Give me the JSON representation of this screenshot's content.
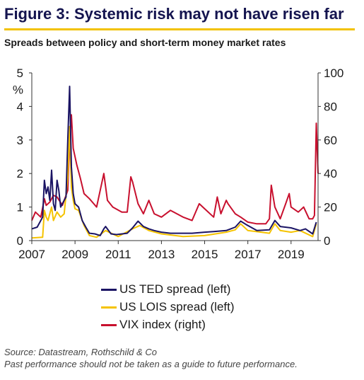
{
  "header": {
    "title": "Figure 3: Systemic risk may not have risen far",
    "subtitle": "Spreads between policy and short-term money market rates"
  },
  "footer": {
    "source": "Source: Datastream, Rothschild & Co",
    "disclaimer": "Past performance should not be taken as a guide to future performance."
  },
  "chart_data": {
    "type": "line",
    "title": "Figure 3: Systemic risk may not have risen far",
    "subtitle": "Spreads between policy and short-term money market rates",
    "x_range": [
      "2007-01",
      "2020-04"
    ],
    "x_ticks": [
      "2007",
      "2009",
      "2011",
      "2013",
      "2015",
      "2017",
      "2019"
    ],
    "y_left": {
      "unit": "%",
      "range": [
        0,
        5
      ],
      "ticks": [
        "0",
        "1",
        "2",
        "3",
        "4",
        "5"
      ]
    },
    "y_right": {
      "range": [
        0,
        100
      ],
      "ticks": [
        "0",
        "20",
        "40",
        "60",
        "80",
        "100"
      ]
    },
    "grid": false,
    "legend_position": "bottom",
    "series": [
      {
        "name": "US TED spread (left)",
        "axis": "left",
        "color": "#1b1464",
        "x": [
          "2007-01",
          "2007-04",
          "2007-07",
          "2007-08",
          "2007-09",
          "2007-10",
          "2007-11",
          "2007-12",
          "2008-01",
          "2008-02",
          "2008-03",
          "2008-04",
          "2008-05",
          "2008-06",
          "2008-07",
          "2008-08",
          "2008-09",
          "2008-10",
          "2008-11",
          "2008-12",
          "2009-01",
          "2009-03",
          "2009-05",
          "2009-07",
          "2009-09",
          "2009-12",
          "2010-03",
          "2010-05",
          "2010-06",
          "2010-09",
          "2010-12",
          "2011-06",
          "2011-09",
          "2011-12",
          "2012-03",
          "2012-06",
          "2012-09",
          "2013-01",
          "2013-06",
          "2014-01",
          "2014-06",
          "2015-01",
          "2015-06",
          "2016-01",
          "2016-06",
          "2016-09",
          "2016-12",
          "2017-06",
          "2018-01",
          "2018-04",
          "2018-07",
          "2019-01",
          "2019-06",
          "2019-09",
          "2020-01",
          "2020-03"
        ],
        "values": [
          0.35,
          0.4,
          0.7,
          1.8,
          1.4,
          1.6,
          1.2,
          2.1,
          1.1,
          0.9,
          1.8,
          1.5,
          1.0,
          1.1,
          1.2,
          1.3,
          3.0,
          4.6,
          2.2,
          1.4,
          1.1,
          1.0,
          0.6,
          0.4,
          0.22,
          0.2,
          0.15,
          0.35,
          0.42,
          0.2,
          0.18,
          0.22,
          0.38,
          0.58,
          0.42,
          0.35,
          0.3,
          0.25,
          0.22,
          0.22,
          0.22,
          0.25,
          0.27,
          0.3,
          0.4,
          0.58,
          0.48,
          0.3,
          0.32,
          0.6,
          0.42,
          0.38,
          0.3,
          0.35,
          0.2,
          0.55
        ]
      },
      {
        "name": "US LOIS spread (left)",
        "axis": "left",
        "color": "#f5c300",
        "x": [
          "2007-01",
          "2007-07",
          "2007-08",
          "2007-09",
          "2007-10",
          "2007-12",
          "2008-01",
          "2008-03",
          "2008-05",
          "2008-07",
          "2008-09",
          "2008-10",
          "2008-11",
          "2008-12",
          "2009-01",
          "2009-03",
          "2009-06",
          "2009-09",
          "2010-01",
          "2010-06",
          "2011-01",
          "2011-09",
          "2012-01",
          "2012-06",
          "2013-01",
          "2014-01",
          "2015-01",
          "2016-01",
          "2016-06",
          "2016-09",
          "2017-01",
          "2018-01",
          "2018-04",
          "2018-07",
          "2019-01",
          "2019-06",
          "2020-01",
          "2020-03"
        ],
        "values": [
          0.08,
          0.1,
          0.9,
          0.7,
          0.6,
          1.0,
          0.6,
          0.85,
          0.7,
          0.8,
          1.9,
          3.4,
          1.6,
          1.2,
          0.95,
          0.9,
          0.45,
          0.15,
          0.1,
          0.3,
          0.12,
          0.35,
          0.45,
          0.3,
          0.2,
          0.12,
          0.15,
          0.25,
          0.32,
          0.5,
          0.3,
          0.22,
          0.5,
          0.3,
          0.25,
          0.3,
          0.12,
          0.5
        ]
      },
      {
        "name": "VIX index (right)",
        "axis": "right",
        "color": "#c8102e",
        "x": [
          "2007-01",
          "2007-03",
          "2007-06",
          "2007-08",
          "2007-09",
          "2007-11",
          "2008-01",
          "2008-03",
          "2008-06",
          "2008-09",
          "2008-10",
          "2008-11",
          "2008-12",
          "2009-02",
          "2009-04",
          "2009-06",
          "2009-09",
          "2010-01",
          "2010-05",
          "2010-07",
          "2010-10",
          "2011-03",
          "2011-06",
          "2011-08",
          "2011-09",
          "2011-12",
          "2012-03",
          "2012-06",
          "2012-09",
          "2013-01",
          "2013-06",
          "2014-01",
          "2014-06",
          "2014-10",
          "2015-01",
          "2015-06",
          "2015-08",
          "2015-10",
          "2016-01",
          "2016-02",
          "2016-06",
          "2016-09",
          "2017-01",
          "2017-06",
          "2017-11",
          "2018-01",
          "2018-02",
          "2018-04",
          "2018-07",
          "2018-10",
          "2018-12",
          "2019-01",
          "2019-05",
          "2019-08",
          "2019-11",
          "2020-01",
          "2020-02",
          "2020-03",
          "2020-04"
        ],
        "values": [
          12,
          17,
          14,
          25,
          21,
          23,
          27,
          26,
          21,
          30,
          60,
          75,
          55,
          45,
          37,
          28,
          25,
          20,
          40,
          24,
          20,
          17,
          17,
          38,
          35,
          22,
          16,
          24,
          16,
          14,
          18,
          14,
          12,
          22,
          19,
          14,
          26,
          16,
          24,
          22,
          16,
          14,
          11,
          10,
          10,
          13,
          33,
          20,
          13,
          22,
          28,
          20,
          17,
          20,
          13,
          13,
          15,
          70,
          40
        ]
      }
    ]
  }
}
